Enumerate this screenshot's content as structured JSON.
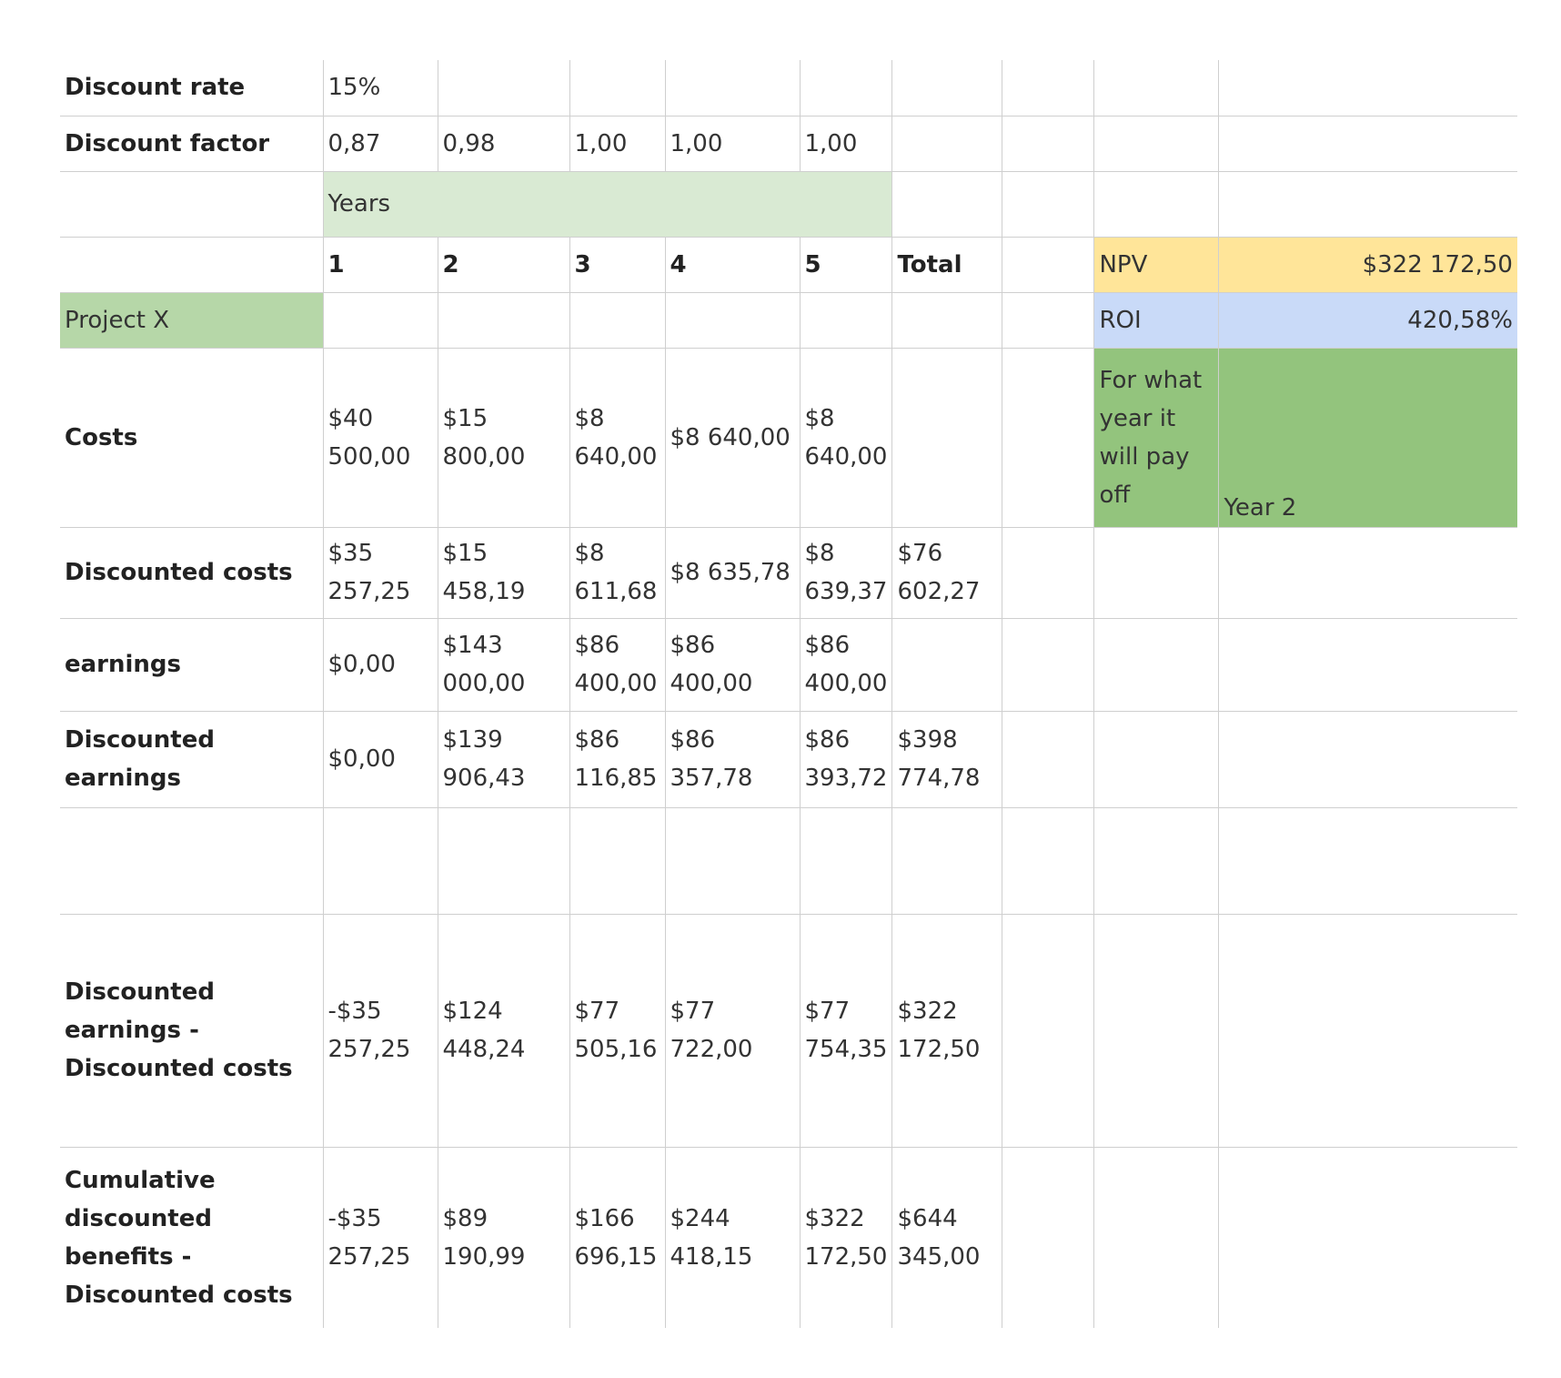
{
  "sheet": {
    "discount_rate": {
      "label": "Discount rate",
      "value": "15%"
    },
    "discount_factor": {
      "label": "Discount factor",
      "values": [
        "0,87",
        "0,98",
        "1,00",
        "1,00",
        "1,00"
      ]
    },
    "years_label": "Years",
    "year_headers": [
      "1",
      "2",
      "3",
      "4",
      "5",
      "Total"
    ],
    "project_label": "Project X",
    "rows": {
      "costs": {
        "label": "Costs",
        "values": [
          "$40 500,00",
          "$15 800,00",
          "$8 640,00",
          "$8 640,00",
          "$8 640,00"
        ]
      },
      "discounted_costs": {
        "label": "Discounted costs",
        "values": [
          "$35 257,25",
          "$15 458,19",
          "$8 611,68",
          "$8 635,78",
          "$8 639,37",
          "$76 602,27"
        ]
      },
      "earnings": {
        "label": "earnings",
        "values": [
          "$0,00",
          "$143 000,00",
          "$86 400,00",
          "$86 400,00",
          "$86 400,00"
        ]
      },
      "discounted_earnings": {
        "label": "Discounted earnings",
        "values": [
          "$0,00",
          "$139 906,43",
          "$86 116,85",
          "$86 357,78",
          "$86 393,72",
          "$398 774,78"
        ]
      },
      "net": {
        "label": "Discounted earnings - Discounted costs",
        "values": [
          "-$35 257,25",
          "$124 448,24",
          "$77 505,16",
          "$77 722,00",
          "$77 754,35",
          "$322 172,50"
        ]
      },
      "cumulative": {
        "label": "Cumulative discounted benefits - Discounted costs",
        "values": [
          "-$35 257,25",
          "$89 190,99",
          "$166 696,15",
          "$244 418,15",
          "$322 172,50",
          "$644 345,00"
        ]
      }
    },
    "summary": {
      "npv_label": "NPV",
      "npv_value": "$322 172,50",
      "roi_label": "ROI",
      "roi_value": "420,58%",
      "payoff_label": "For what year it will pay off",
      "payoff_value": "Year 2"
    },
    "colors": {
      "years": "#d9ead3",
      "project": "#b6d7a8",
      "npv": "#ffe599",
      "roi": "#c9daf8",
      "payoff": "#93c47d"
    }
  }
}
